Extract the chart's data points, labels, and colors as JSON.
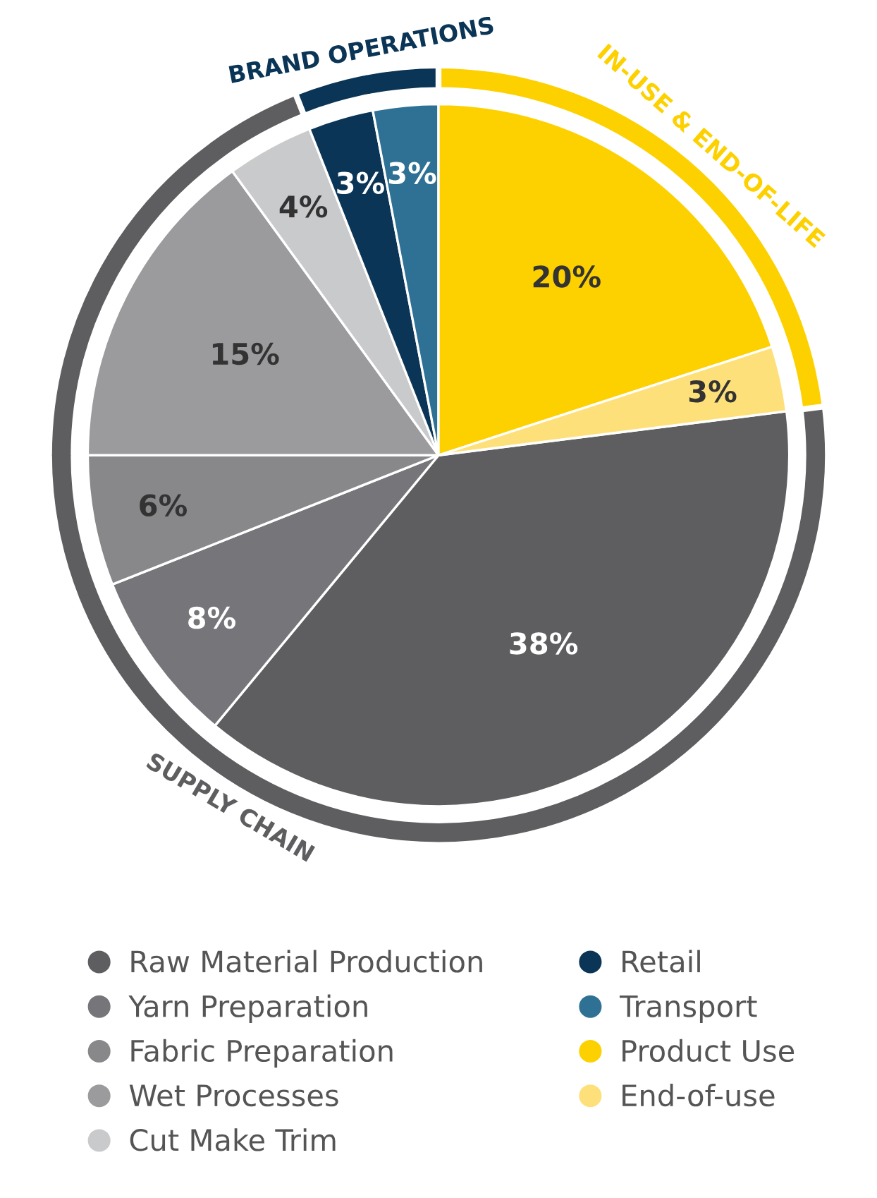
{
  "chart_data": {
    "type": "pie",
    "legend": "bottom",
    "categories": [
      "Raw Material Production",
      "Yarn Preparation",
      "Fabric Preparation",
      "Wet Processes",
      "Cut Make Trim",
      "Retail",
      "Transport",
      "Product Use",
      "End-of-use"
    ],
    "annotations": [
      "SUPPLY CHAIN",
      "BRAND OPERATIONS",
      "IN-USE & END-OF-LIFE"
    ],
    "series": [
      {
        "values": [
          38,
          8,
          6,
          15,
          4,
          3,
          3,
          20,
          3
        ],
        "value_labels": [
          "38%",
          "8%",
          "6%",
          "15%",
          "4%",
          "3%",
          "3%",
          "20%",
          "3%"
        ],
        "colors": [
          "#5e5e61",
          "#76767a",
          "#88888b",
          "#9b9b9e",
          "#c9cacc",
          "#0b3556",
          "#2f7195",
          "#fdd100",
          "#fee07a"
        ]
      },
      {
        "type": "donut",
        "values": [
          38,
          8,
          6,
          15,
          4,
          3,
          3,
          20,
          3
        ],
        "colors": [
          "#5e5e61",
          "#5e5e61",
          "#5e5e61",
          "#5e5e61",
          "#5e5e61",
          "#0b3556",
          "#0b3556",
          "#fdd100",
          "#fdd100"
        ]
      }
    ]
  }
}
